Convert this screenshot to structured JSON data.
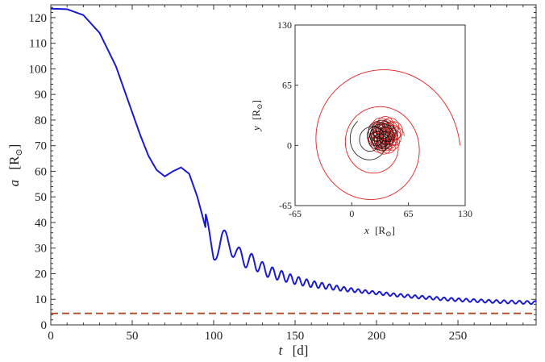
{
  "chart_data": [
    {
      "type": "line",
      "xlabel": "t",
      "xunit": "[d]",
      "ylabel": "a",
      "yunit_prefix": "[R",
      "yunit_suffix": "]",
      "xlim": [
        0,
        298
      ],
      "ylim": [
        0,
        125
      ],
      "xticks": [
        0,
        50,
        100,
        150,
        200,
        250
      ],
      "yticks": [
        0,
        10,
        20,
        30,
        40,
        50,
        60,
        70,
        80,
        90,
        100,
        110,
        120
      ],
      "grid": false,
      "series": [
        {
          "color": "#1a1ad6",
          "style": "solid",
          "x": [
            0,
            10,
            20,
            30,
            40,
            50,
            55,
            60,
            65,
            70,
            75,
            80,
            85,
            90,
            95,
            100,
            105,
            110,
            115,
            120,
            125,
            130,
            135,
            140,
            145,
            150,
            160,
            170,
            180,
            190,
            200,
            210,
            220,
            230,
            240,
            250,
            260,
            270,
            280,
            290,
            298
          ],
          "y": [
            123.5,
            123.3,
            121,
            114,
            101,
            83,
            74,
            66,
            60.5,
            58,
            60,
            61.5,
            59,
            50,
            38,
            29.5,
            33,
            32,
            27,
            25.5,
            24.5,
            22,
            20.5,
            19.5,
            18.5,
            17.5,
            16,
            15,
            14,
            13.2,
            12.5,
            11.8,
            11.2,
            10.7,
            10.2,
            9.8,
            9.5,
            9.2,
            9,
            8.8,
            8.7
          ],
          "oscillation_onset": 95,
          "oscillation_period": 5
        },
        {
          "color": "#b5481c",
          "style": "dashed",
          "x": [
            0,
            298
          ],
          "y": [
            4.5,
            4.5
          ]
        }
      ]
    },
    {
      "type": "line",
      "inset": true,
      "xlabel": "x",
      "xunit_prefix": "[R",
      "xunit_suffix": "]",
      "ylabel": "y",
      "yunit_prefix": "[R",
      "yunit_suffix": "]",
      "sun_symbol": "⊙",
      "xlim": [
        -65,
        130
      ],
      "ylim": [
        -65,
        130
      ],
      "xticks": [
        -65,
        0,
        65,
        130
      ],
      "yticks": [
        -65,
        0,
        65,
        130
      ],
      "series": [
        {
          "color": "#e02020",
          "path": "spiral orbit of the primary"
        },
        {
          "color": "#111111",
          "path": "orbit of the companion"
        }
      ]
    }
  ]
}
